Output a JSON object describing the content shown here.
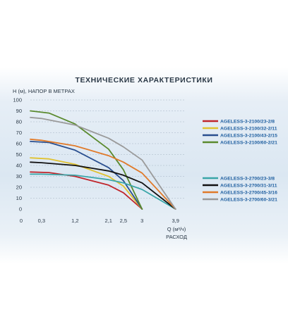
{
  "chart_data": {
    "type": "line",
    "title": "ТЕХНИЧЕСКИЕ ХАРАКТЕРИСТИКИ",
    "ylabel": "H (м), НАПОР В МЕТРАХ",
    "xlabel": "Q (м³/ч)",
    "xlabel2": "РАСХОД",
    "ylim": [
      0,
      100
    ],
    "yticks": [
      0,
      10,
      20,
      30,
      40,
      50,
      60,
      70,
      80,
      90,
      100
    ],
    "ytick_labels": [
      "0",
      "10",
      "20",
      "30",
      "40",
      "50",
      "60",
      "70",
      "80",
      "90",
      "100"
    ],
    "xticks": [
      0.3,
      1.2,
      2.1,
      2.5,
      3,
      3.9
    ],
    "xtick_labels": [
      "0,3",
      "1,2",
      "2,1",
      "2,5",
      "3",
      "3,9"
    ],
    "grid": "horizontal",
    "legend_groups": [
      {
        "placement": "right-upper",
        "series": [
          {
            "name": "AGELESS-3-2100/23-2/8",
            "color": "#c0262c",
            "x": [
              0,
              0.5,
              1.2,
              2.1,
              2.5,
              3.0
            ],
            "y": [
              34,
              33.5,
              30,
              22,
              15,
              0
            ]
          },
          {
            "name": "AGELESS-3-2100/32-2/11",
            "color": "#e0c230",
            "x": [
              0,
              0.5,
              1.2,
              2.1,
              2.5,
              3.0
            ],
            "y": [
              47,
              46,
              41,
              30,
              21,
              0
            ]
          },
          {
            "name": "AGELESS-3-2100/43-2/15",
            "color": "#2a4f8f",
            "x": [
              0,
              0.5,
              1.2,
              2.1,
              2.5,
              3.0
            ],
            "y": [
              62,
              61,
              54,
              38,
              26,
              0
            ]
          },
          {
            "name": "AGELESS-3-2100/60-2/21",
            "color": "#5a8a2e",
            "x": [
              0,
              0.5,
              1.2,
              2.1,
              2.5,
              3.0
            ],
            "y": [
              90,
              88,
              78,
              55,
              36,
              0
            ]
          }
        ]
      },
      {
        "placement": "right-lower",
        "series": [
          {
            "name": "AGELESS-3-2700/23-3/8",
            "color": "#3aa6a8",
            "x": [
              0,
              0.3,
              1.2,
              2.1,
              2.5,
              3.0,
              3.9
            ],
            "y": [
              32,
              32,
              31,
              27,
              24,
              18,
              0
            ]
          },
          {
            "name": "AGELESS-3-2700/31-3/11",
            "color": "#111111",
            "x": [
              0,
              0.3,
              1.2,
              2.1,
              2.5,
              3.0,
              3.9
            ],
            "y": [
              43,
              42.5,
              40,
              35,
              31,
              24,
              0
            ]
          },
          {
            "name": "AGELESS-3-2700/45-3/16",
            "color": "#e07a2a",
            "x": [
              0,
              0.3,
              1.2,
              2.1,
              2.5,
              3.0,
              3.9
            ],
            "y": [
              64,
              63,
              58,
              49,
              43,
              33,
              0
            ]
          },
          {
            "name": "AGELESS-3-2700/60-3/21",
            "color": "#9a9a9a",
            "x": [
              0,
              0.3,
              1.2,
              2.1,
              2.5,
              3.0,
              3.9
            ],
            "y": [
              84,
              83,
              77,
              65,
              57,
              45,
              0
            ]
          }
        ]
      }
    ]
  }
}
